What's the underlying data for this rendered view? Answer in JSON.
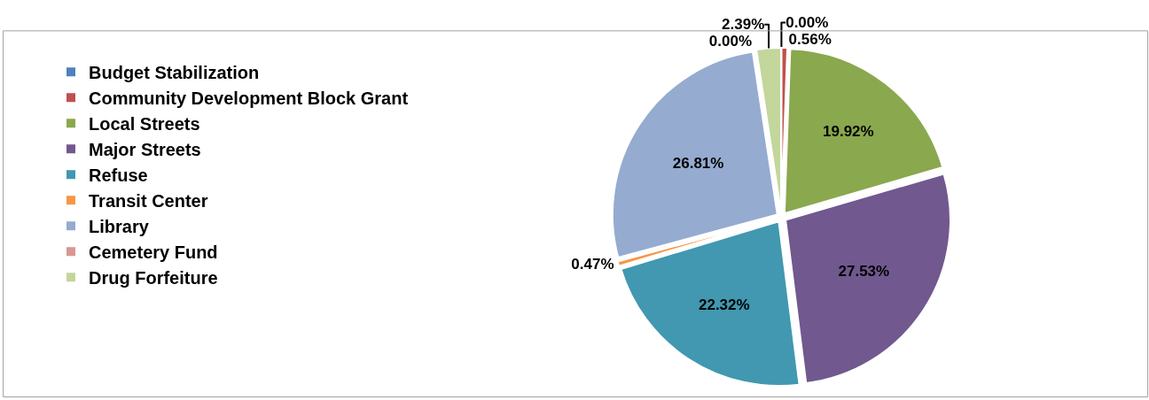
{
  "chart_data": {
    "type": "pie",
    "categories": [
      "Budget Stabilization",
      "Community Development Block Grant",
      "Local Streets",
      "Major Streets",
      "Refuse",
      "Transit Center",
      "Library",
      "Cemetery Fund",
      "Drug Forfeiture"
    ],
    "values": [
      0.0,
      0.56,
      19.92,
      27.53,
      22.32,
      0.47,
      26.81,
      0.0,
      2.39
    ],
    "colors": [
      "#4f81bd",
      "#c0504d",
      "#8aa84e",
      "#71588f",
      "#4198b0",
      "#f79646",
      "#95abd0",
      "#d99694",
      "#c3d69b"
    ],
    "value_labels": [
      "0.00%",
      "0.56%",
      "19.92%",
      "27.53%",
      "22.32%",
      "0.47%",
      "26.81%",
      "0.00%",
      "2.39%"
    ],
    "legend": "left"
  }
}
